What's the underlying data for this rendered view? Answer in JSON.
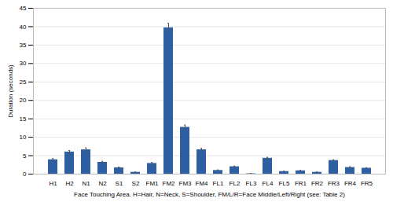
{
  "chart_data": {
    "type": "bar",
    "categories": [
      "H1",
      "H2",
      "N1",
      "N2",
      "S1",
      "S2",
      "FM1",
      "FM2",
      "FM3",
      "FM4",
      "FL1",
      "FL2",
      "FL3",
      "FL4",
      "FL5",
      "FR1",
      "FR2",
      "FR3",
      "FR4",
      "FR5"
    ],
    "values": [
      3.9,
      6.0,
      6.6,
      3.2,
      1.7,
      0.5,
      2.9,
      39.7,
      12.7,
      6.6,
      1.0,
      2.0,
      0.1,
      4.3,
      0.7,
      0.9,
      0.5,
      3.7,
      1.8,
      1.6
    ],
    "errors": [
      0.3,
      0.4,
      0.5,
      0.25,
      0.2,
      0.08,
      0.25,
      1.2,
      0.6,
      0.35,
      0.12,
      0.18,
      0.05,
      0.25,
      0.08,
      0.1,
      0.08,
      0.18,
      0.18,
      0.12
    ],
    "color": "#2E5FA3",
    "xlabel": "Face Touching Area. H=Hair, N=Neck, S=Shoulder, FM/L/R=Face Middle/Left/Right (see: Table 2)",
    "ylabel": "Duration (seconds)",
    "ylim": [
      0,
      45
    ],
    "yticks": [
      0,
      5,
      10,
      15,
      20,
      25,
      30,
      35,
      40,
      45
    ],
    "grid": true
  }
}
